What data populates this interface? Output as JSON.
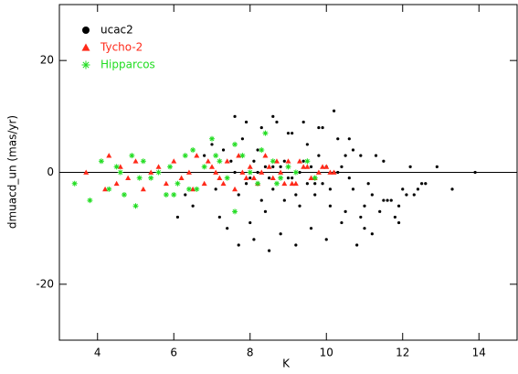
{
  "chart_data": {
    "type": "scatter",
    "x_label": "K",
    "y_label": "dmuacd_un (mas/yr)",
    "xlim": [
      3,
      15
    ],
    "ylim": [
      -30,
      30
    ],
    "xticks": [
      4,
      6,
      8,
      10,
      12,
      14
    ],
    "yticks": [
      -20,
      0,
      20
    ],
    "reference_line": 0,
    "legend": "upper left",
    "series": [
      {
        "name": "ucac2",
        "color": "#000000",
        "marker": "circle",
        "x": [
          7.6,
          7.7,
          7.9,
          8.1,
          8.3,
          8.5,
          8.6,
          8.8,
          9.0,
          9.2,
          9.4,
          9.6,
          9.8,
          10.0,
          10.2,
          10.4,
          10.6,
          10.8,
          11.0,
          11.2,
          11.5,
          11.8,
          12.0,
          12.3,
          12.5,
          12.9,
          13.3,
          13.9,
          7.0,
          7.2,
          7.4,
          7.8,
          8.0,
          8.2,
          8.4,
          8.7,
          8.9,
          9.1,
          9.3,
          9.5,
          9.7,
          9.9,
          10.1,
          10.3,
          10.5,
          10.7,
          10.9,
          11.1,
          11.3,
          11.6,
          11.9,
          12.2,
          12.6,
          6.1,
          6.3,
          6.5,
          6.8,
          7.1,
          7.5,
          7.9,
          8.3,
          8.6,
          8.9,
          9.2,
          9.5,
          9.8,
          10.1,
          10.4,
          10.7,
          11.0,
          11.4,
          11.7,
          12.1,
          12.4,
          7.3,
          7.7,
          8.1,
          8.5,
          8.8,
          9.1,
          9.4,
          9.7,
          10.0,
          10.3,
          10.6,
          10.9,
          11.2,
          11.5,
          11.9,
          8.2,
          8.6,
          9.0,
          9.3,
          9.6,
          9.9,
          10.2,
          10.5,
          7.6,
          8.0,
          8.4
        ],
        "values": [
          10,
          -13,
          9,
          -12,
          8,
          -14,
          10,
          -11,
          7,
          -13,
          9,
          -10,
          8,
          -12,
          11,
          -9,
          6,
          -13,
          -6,
          -11,
          -5,
          -8,
          -3,
          -4,
          -2,
          1,
          -3,
          0,
          5,
          -8,
          -10,
          6,
          -9,
          4,
          -7,
          9,
          -5,
          7,
          -6,
          5,
          -4,
          8,
          -3,
          6,
          -7,
          4,
          -8,
          -2,
          3,
          -5,
          -9,
          1,
          -2,
          -8,
          -4,
          -6,
          3,
          -3,
          2,
          -2,
          -5,
          -3,
          2,
          -4,
          -2,
          3,
          -6,
          1,
          -3,
          -10,
          -7,
          -5,
          -4,
          -3,
          4,
          -4,
          2,
          -1,
          1,
          -1,
          2,
          -2,
          1,
          0,
          -1,
          3,
          -4,
          2,
          -6,
          0,
          1,
          -1,
          0,
          1,
          -2,
          0,
          3,
          0,
          -1,
          1
        ]
      },
      {
        "name": "Tycho-2",
        "color": "#ff2a1a",
        "marker": "triangle",
        "x": [
          3.7,
          4.2,
          4.3,
          4.5,
          4.6,
          4.8,
          5.0,
          5.2,
          5.4,
          5.6,
          5.8,
          6.0,
          6.2,
          6.4,
          6.6,
          6.8,
          7.0,
          7.2,
          7.4,
          7.6,
          7.8,
          8.0,
          8.2,
          8.4,
          8.6,
          8.8,
          9.0,
          9.2,
          9.4,
          9.6,
          9.8,
          10.0,
          10.2,
          6.5,
          6.9,
          7.3,
          7.7,
          8.1,
          8.5,
          8.9,
          9.3,
          9.7,
          10.1,
          7.1,
          7.9,
          8.7,
          9.5,
          8.3,
          9.1,
          9.9
        ],
        "values": [
          0,
          -3,
          3,
          -2,
          1,
          -1,
          2,
          -3,
          0,
          1,
          -2,
          2,
          -1,
          0,
          3,
          -2,
          1,
          -1,
          2,
          -3,
          0,
          1,
          -2,
          3,
          -1,
          0,
          2,
          -2,
          1,
          -1,
          0,
          1,
          0,
          -3,
          2,
          -2,
          3,
          -1,
          1,
          -2,
          2,
          -1,
          0,
          0,
          -1,
          2,
          1,
          0,
          -2,
          1
        ]
      },
      {
        "name": "Hipparcos",
        "color": "#22dd22",
        "marker": "asterisk",
        "x": [
          3.4,
          3.8,
          4.1,
          4.3,
          4.5,
          4.7,
          4.9,
          5.0,
          5.2,
          5.4,
          5.6,
          5.8,
          5.9,
          6.1,
          6.3,
          6.5,
          6.6,
          6.8,
          7.0,
          7.2,
          7.4,
          7.6,
          7.8,
          8.0,
          8.2,
          8.4,
          8.6,
          8.8,
          9.0,
          9.2,
          9.5,
          9.7,
          5.1,
          6.0,
          6.4,
          7.1,
          7.6,
          8.3,
          8.7,
          4.6
        ],
        "values": [
          -2,
          -5,
          2,
          -3,
          1,
          -4,
          3,
          -6,
          2,
          -1,
          0,
          -4,
          1,
          -2,
          3,
          4,
          -3,
          1,
          6,
          2,
          -1,
          -7,
          3,
          0,
          -2,
          7,
          2,
          -1,
          1,
          0,
          2,
          -1,
          -1,
          -4,
          -3,
          3,
          5,
          4,
          -2,
          0
        ]
      }
    ]
  }
}
